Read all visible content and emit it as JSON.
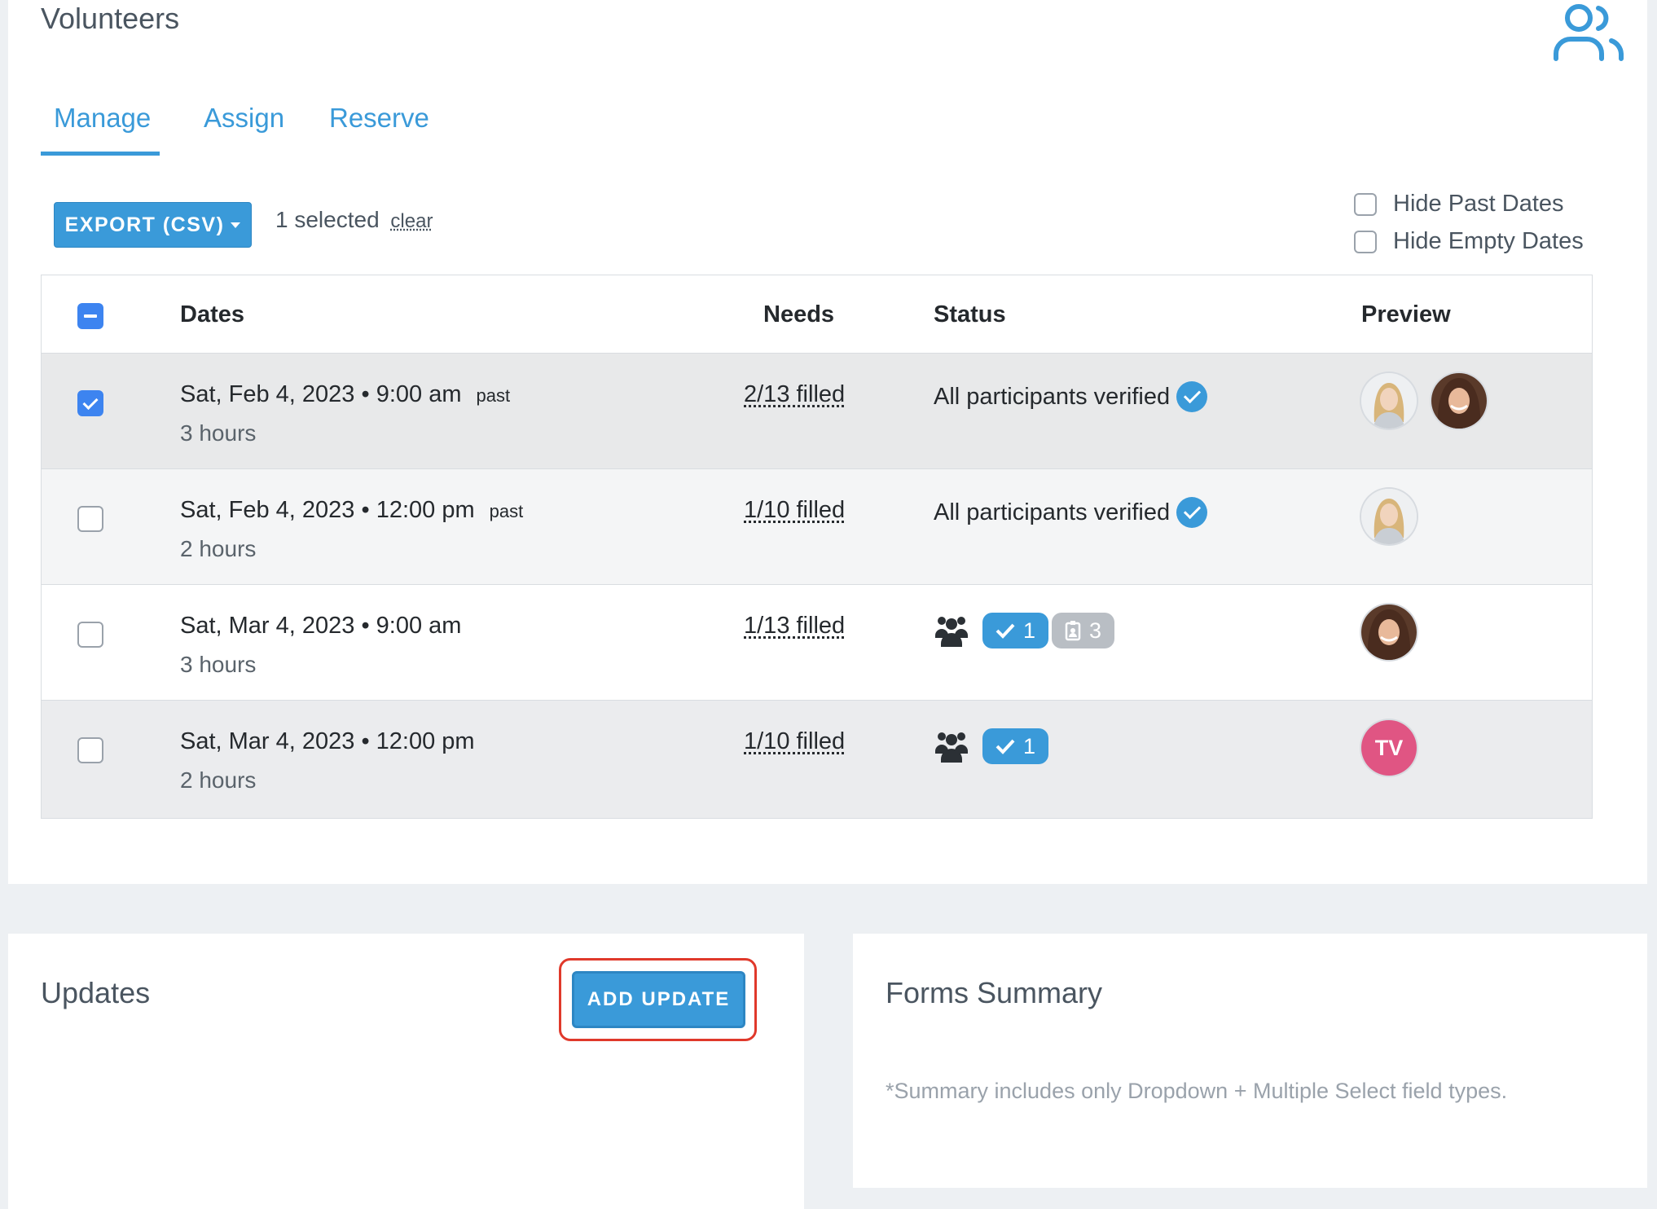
{
  "volunteers": {
    "title": "Volunteers",
    "icon": "users-icon",
    "tabs": [
      {
        "label": "Manage",
        "active": true
      },
      {
        "label": "Assign",
        "active": false
      },
      {
        "label": "Reserve",
        "active": false
      }
    ],
    "export_label": "EXPORT (CSV)",
    "selected_text": "1 selected",
    "clear_label": "clear",
    "options": [
      {
        "label": "Hide Past Dates",
        "checked": false
      },
      {
        "label": "Hide Empty Dates",
        "checked": false
      }
    ],
    "table": {
      "headers": {
        "dates": "Dates",
        "needs": "Needs",
        "status": "Status",
        "preview": "Preview"
      },
      "rows": [
        {
          "checked": true,
          "date": "Sat, Feb 4, 2023 • 9:00 am",
          "past": "past",
          "duration": "3 hours",
          "needs": "2/13 filled",
          "status": "All participants verified",
          "preview": [
            "avatar-blonde",
            "avatar-brunette"
          ]
        },
        {
          "checked": false,
          "date": "Sat, Feb 4, 2023 • 12:00 pm",
          "past": "past",
          "duration": "2 hours",
          "needs": "1/10 filled",
          "status": "All participants verified",
          "preview": [
            "avatar-blonde"
          ]
        },
        {
          "checked": false,
          "date": "Sat, Mar 4, 2023 • 9:00 am",
          "past": "",
          "duration": "3 hours",
          "needs": "1/13 filled",
          "verified_count": "1",
          "pending_count": "3",
          "preview": [
            "avatar-brunette"
          ]
        },
        {
          "checked": false,
          "date": "Sat, Mar 4, 2023 • 12:00 pm",
          "past": "",
          "duration": "2 hours",
          "needs": "1/10 filled",
          "verified_count": "1",
          "preview_initials": "TV"
        }
      ]
    }
  },
  "updates": {
    "title": "Updates",
    "add_label": "ADD UPDATE"
  },
  "forms": {
    "title": "Forms Summary",
    "note": "*Summary includes only Dropdown + Multiple Select field types."
  },
  "colors": {
    "accent": "#3a9ad9",
    "checkbox": "#3d84f0",
    "highlight": "#e0392b",
    "avatar_tv": "#e05583"
  }
}
